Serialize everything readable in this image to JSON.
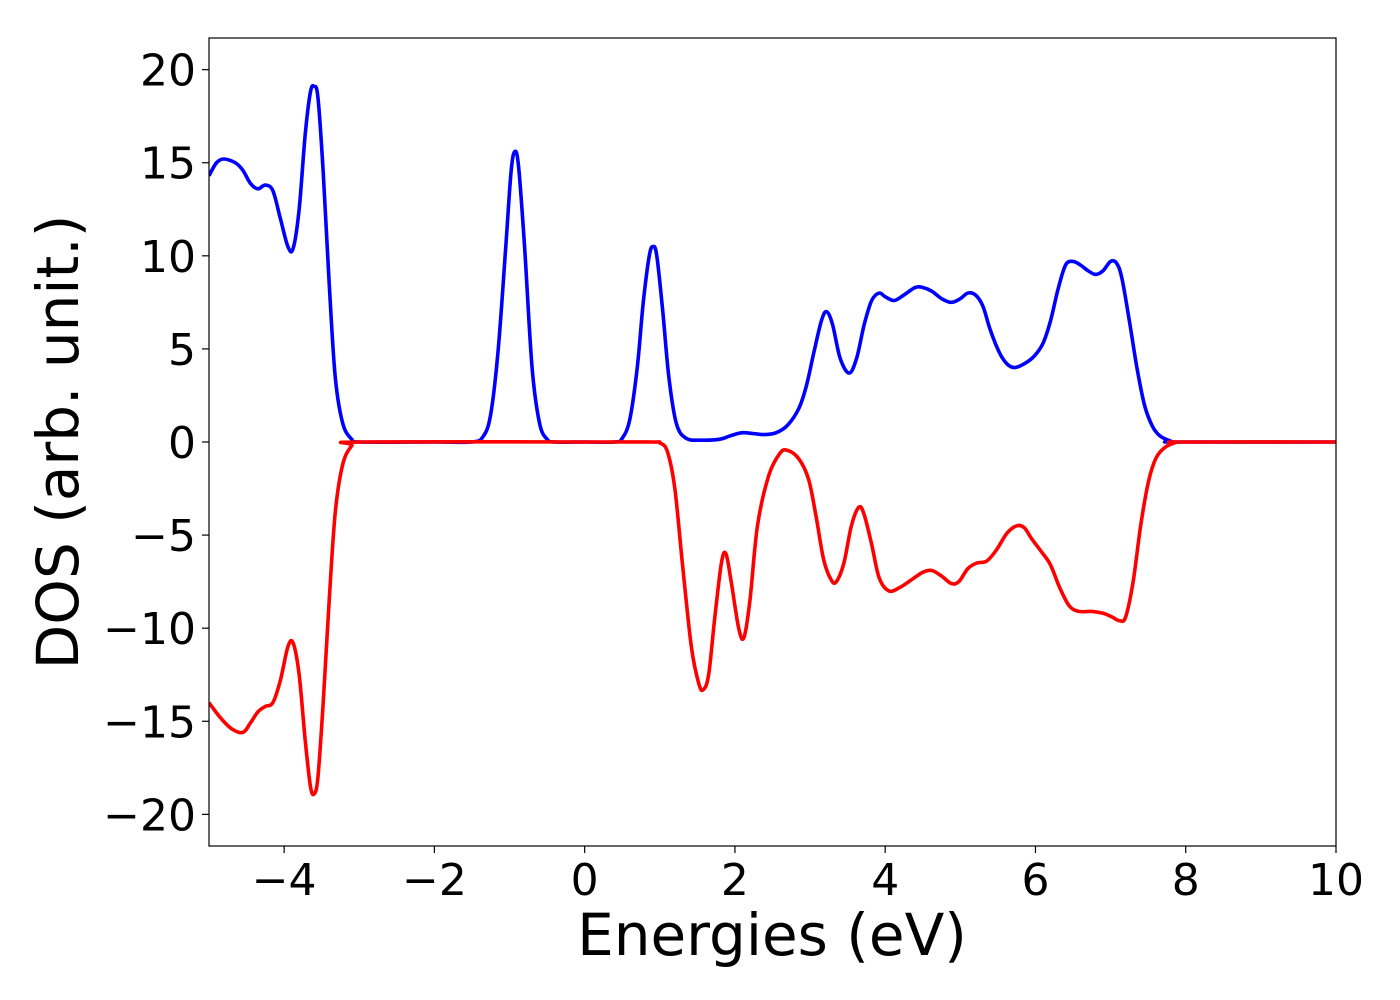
{
  "chart_data": {
    "type": "line",
    "title": "",
    "xlabel": "Energies (eV)",
    "ylabel": "DOS (arb. unit.)",
    "xlim": [
      -5,
      10
    ],
    "ylim": [
      -21.7,
      21.7
    ],
    "grid": false,
    "legend": "none",
    "x_ticks": [
      -4,
      -2,
      0,
      2,
      4,
      6,
      8,
      10
    ],
    "x_tick_labels": [
      "−4",
      "−2",
      "0",
      "2",
      "4",
      "6",
      "8",
      "10"
    ],
    "y_ticks": [
      20,
      15,
      10,
      5,
      0,
      -5,
      -10,
      -15,
      -20
    ],
    "y_tick_labels": [
      "20",
      "15",
      "10",
      "5",
      "0",
      "−5",
      "−10",
      "−15",
      "−20"
    ],
    "series": [
      {
        "color": "#0000ff",
        "points": [
          [
            -5.0,
            14.3
          ],
          [
            -4.9,
            15.0
          ],
          [
            -4.8,
            15.2
          ],
          [
            -4.65,
            15.0
          ],
          [
            -4.55,
            14.6
          ],
          [
            -4.45,
            13.9
          ],
          [
            -4.35,
            13.6
          ],
          [
            -4.25,
            13.8
          ],
          [
            -4.15,
            13.5
          ],
          [
            -4.05,
            12.0
          ],
          [
            -3.95,
            10.5
          ],
          [
            -3.88,
            10.4
          ],
          [
            -3.8,
            12.5
          ],
          [
            -3.72,
            16.5
          ],
          [
            -3.65,
            18.8
          ],
          [
            -3.6,
            19.1
          ],
          [
            -3.55,
            18.5
          ],
          [
            -3.48,
            14.5
          ],
          [
            -3.4,
            8.5
          ],
          [
            -3.32,
            3.5
          ],
          [
            -3.22,
            1.0
          ],
          [
            -3.1,
            0.15
          ],
          [
            -3.0,
            0.0
          ],
          [
            -2.0,
            0.0
          ],
          [
            -1.5,
            0.0
          ],
          [
            -1.35,
            0.3
          ],
          [
            -1.25,
            1.5
          ],
          [
            -1.15,
            5.0
          ],
          [
            -1.05,
            10.5
          ],
          [
            -0.98,
            14.5
          ],
          [
            -0.93,
            15.6
          ],
          [
            -0.88,
            14.8
          ],
          [
            -0.8,
            10.5
          ],
          [
            -0.7,
            4.0
          ],
          [
            -0.6,
            1.0
          ],
          [
            -0.5,
            0.15
          ],
          [
            -0.4,
            0.0
          ],
          [
            0.0,
            0.0
          ],
          [
            0.4,
            0.0
          ],
          [
            0.5,
            0.2
          ],
          [
            0.6,
            1.2
          ],
          [
            0.7,
            4.0
          ],
          [
            0.78,
            7.5
          ],
          [
            0.86,
            10.0
          ],
          [
            0.91,
            10.5
          ],
          [
            0.96,
            10.0
          ],
          [
            1.04,
            7.0
          ],
          [
            1.12,
            3.5
          ],
          [
            1.22,
            1.0
          ],
          [
            1.35,
            0.2
          ],
          [
            1.55,
            0.1
          ],
          [
            1.8,
            0.15
          ],
          [
            1.95,
            0.35
          ],
          [
            2.1,
            0.5
          ],
          [
            2.25,
            0.45
          ],
          [
            2.4,
            0.4
          ],
          [
            2.55,
            0.5
          ],
          [
            2.7,
            0.9
          ],
          [
            2.85,
            1.8
          ],
          [
            2.95,
            3.0
          ],
          [
            3.05,
            4.8
          ],
          [
            3.15,
            6.5
          ],
          [
            3.22,
            7.0
          ],
          [
            3.3,
            6.3
          ],
          [
            3.4,
            4.5
          ],
          [
            3.52,
            3.7
          ],
          [
            3.62,
            4.5
          ],
          [
            3.72,
            6.3
          ],
          [
            3.82,
            7.6
          ],
          [
            3.92,
            8.0
          ],
          [
            4.0,
            7.8
          ],
          [
            4.12,
            7.6
          ],
          [
            4.25,
            7.9
          ],
          [
            4.4,
            8.3
          ],
          [
            4.5,
            8.3
          ],
          [
            4.62,
            8.1
          ],
          [
            4.75,
            7.7
          ],
          [
            4.88,
            7.5
          ],
          [
            5.0,
            7.7
          ],
          [
            5.1,
            8.0
          ],
          [
            5.2,
            7.9
          ],
          [
            5.3,
            7.3
          ],
          [
            5.4,
            6.0
          ],
          [
            5.52,
            4.8
          ],
          [
            5.62,
            4.2
          ],
          [
            5.72,
            4.0
          ],
          [
            5.85,
            4.2
          ],
          [
            5.98,
            4.6
          ],
          [
            6.1,
            5.3
          ],
          [
            6.2,
            6.5
          ],
          [
            6.3,
            8.2
          ],
          [
            6.4,
            9.5
          ],
          [
            6.5,
            9.7
          ],
          [
            6.6,
            9.5
          ],
          [
            6.7,
            9.2
          ],
          [
            6.8,
            9.0
          ],
          [
            6.9,
            9.2
          ],
          [
            7.0,
            9.7
          ],
          [
            7.08,
            9.6
          ],
          [
            7.15,
            8.8
          ],
          [
            7.25,
            6.5
          ],
          [
            7.35,
            4.0
          ],
          [
            7.45,
            2.0
          ],
          [
            7.55,
            0.9
          ],
          [
            7.65,
            0.35
          ],
          [
            7.8,
            0.05
          ],
          [
            7.9,
            0.0
          ],
          [
            10.0,
            0.0
          ]
        ]
      },
      {
        "color": "#ff0000",
        "points": [
          [
            -5.0,
            -14.0
          ],
          [
            -4.85,
            -14.8
          ],
          [
            -4.7,
            -15.4
          ],
          [
            -4.55,
            -15.6
          ],
          [
            -4.45,
            -15.1
          ],
          [
            -4.35,
            -14.5
          ],
          [
            -4.25,
            -14.2
          ],
          [
            -4.15,
            -14.0
          ],
          [
            -4.05,
            -12.8
          ],
          [
            -3.95,
            -11.0
          ],
          [
            -3.88,
            -10.8
          ],
          [
            -3.8,
            -12.5
          ],
          [
            -3.72,
            -16.0
          ],
          [
            -3.65,
            -18.5
          ],
          [
            -3.6,
            -18.9
          ],
          [
            -3.55,
            -18.0
          ],
          [
            -3.48,
            -14.0
          ],
          [
            -3.4,
            -8.5
          ],
          [
            -3.32,
            -3.8
          ],
          [
            -3.22,
            -1.2
          ],
          [
            -3.1,
            -0.2
          ],
          [
            -3.0,
            0.0
          ],
          [
            0.0,
            0.0
          ],
          [
            0.9,
            0.0
          ],
          [
            1.0,
            -0.05
          ],
          [
            1.1,
            -0.5
          ],
          [
            1.2,
            -2.5
          ],
          [
            1.3,
            -6.5
          ],
          [
            1.42,
            -11.0
          ],
          [
            1.52,
            -13.0
          ],
          [
            1.58,
            -13.3
          ],
          [
            1.65,
            -12.5
          ],
          [
            1.73,
            -9.5
          ],
          [
            1.82,
            -6.5
          ],
          [
            1.88,
            -6.0
          ],
          [
            1.95,
            -7.5
          ],
          [
            2.05,
            -10.0
          ],
          [
            2.12,
            -10.5
          ],
          [
            2.2,
            -8.5
          ],
          [
            2.3,
            -4.5
          ],
          [
            2.45,
            -1.8
          ],
          [
            2.6,
            -0.6
          ],
          [
            2.7,
            -0.45
          ],
          [
            2.85,
            -0.9
          ],
          [
            2.98,
            -2.0
          ],
          [
            3.08,
            -4.0
          ],
          [
            3.18,
            -6.3
          ],
          [
            3.28,
            -7.4
          ],
          [
            3.35,
            -7.5
          ],
          [
            3.45,
            -6.5
          ],
          [
            3.55,
            -4.5
          ],
          [
            3.65,
            -3.5
          ],
          [
            3.72,
            -3.9
          ],
          [
            3.82,
            -5.5
          ],
          [
            3.92,
            -7.3
          ],
          [
            4.05,
            -8.0
          ],
          [
            4.2,
            -7.8
          ],
          [
            4.35,
            -7.4
          ],
          [
            4.5,
            -7.0
          ],
          [
            4.62,
            -6.9
          ],
          [
            4.75,
            -7.2
          ],
          [
            4.88,
            -7.6
          ],
          [
            4.98,
            -7.5
          ],
          [
            5.1,
            -6.8
          ],
          [
            5.22,
            -6.5
          ],
          [
            5.35,
            -6.4
          ],
          [
            5.48,
            -5.8
          ],
          [
            5.62,
            -4.9
          ],
          [
            5.75,
            -4.5
          ],
          [
            5.85,
            -4.6
          ],
          [
            5.95,
            -5.2
          ],
          [
            6.08,
            -5.9
          ],
          [
            6.2,
            -6.6
          ],
          [
            6.32,
            -7.8
          ],
          [
            6.45,
            -8.8
          ],
          [
            6.58,
            -9.1
          ],
          [
            6.75,
            -9.1
          ],
          [
            6.9,
            -9.2
          ],
          [
            7.02,
            -9.4
          ],
          [
            7.12,
            -9.6
          ],
          [
            7.2,
            -9.4
          ],
          [
            7.3,
            -7.5
          ],
          [
            7.4,
            -4.5
          ],
          [
            7.5,
            -2.2
          ],
          [
            7.6,
            -0.9
          ],
          [
            7.72,
            -0.3
          ],
          [
            7.85,
            -0.05
          ],
          [
            7.95,
            0.0
          ],
          [
            10.0,
            0.0
          ]
        ]
      }
    ]
  }
}
